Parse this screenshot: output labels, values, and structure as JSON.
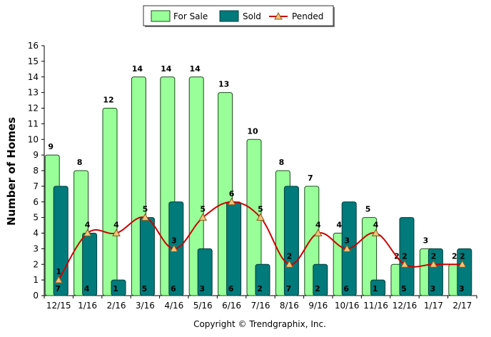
{
  "chart_data": {
    "type": "bar",
    "categories": [
      "12/15",
      "1/16",
      "2/16",
      "3/16",
      "4/16",
      "5/16",
      "6/16",
      "7/16",
      "8/16",
      "9/16",
      "10/16",
      "11/16",
      "12/16",
      "1/17",
      "2/17"
    ],
    "series": [
      {
        "name": "For Sale",
        "type": "bar",
        "color": "#99ff99",
        "border": "#1a4d1a",
        "values": [
          9,
          8,
          12,
          14,
          14,
          14,
          13,
          10,
          8,
          7,
          4,
          5,
          2,
          3,
          2
        ]
      },
      {
        "name": "Sold",
        "type": "bar",
        "color": "#007a7a",
        "border": "#003c3c",
        "values": [
          7,
          4,
          1,
          5,
          6,
          3,
          6,
          2,
          7,
          2,
          6,
          1,
          5,
          3,
          3
        ]
      },
      {
        "name": "Pended",
        "type": "line",
        "color": "#cc0000",
        "marker_color": "#f2c27a",
        "values": [
          1,
          4,
          4,
          5,
          3,
          5,
          6,
          5,
          2,
          4,
          3,
          4,
          2,
          2,
          2
        ]
      }
    ],
    "ylabel": "Number of Homes",
    "xlabel": "",
    "ylim": [
      0,
      16
    ],
    "yticks": [
      0,
      1,
      2,
      3,
      4,
      5,
      6,
      7,
      8,
      9,
      10,
      11,
      12,
      13,
      14,
      15,
      16
    ],
    "grid": false,
    "legend_position": "top-center"
  },
  "copyright": "Copyright © Trendgraphix, Inc."
}
